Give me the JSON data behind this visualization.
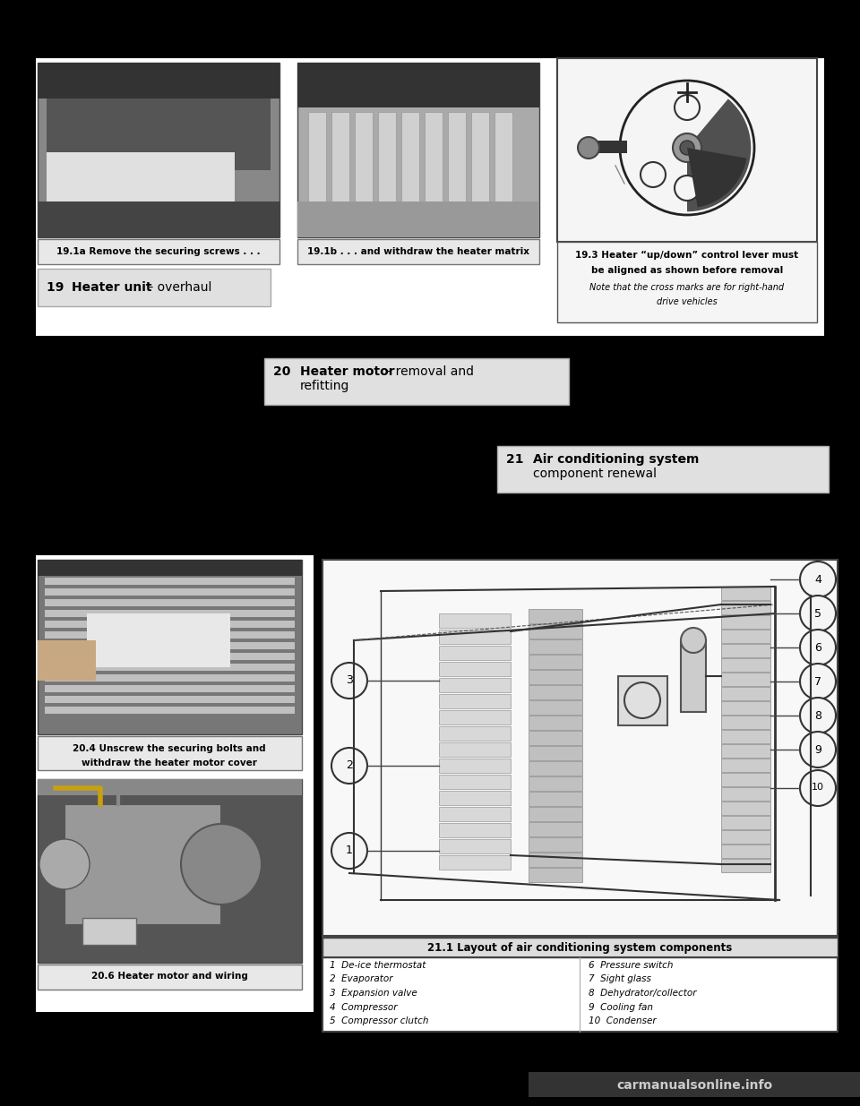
{
  "figsize": [
    9.6,
    12.35
  ],
  "dpi": 100,
  "bg": "#000000",
  "white": "#ffffff",
  "light_gray": "#e8e8e8",
  "med_gray": "#cccccc",
  "dark_gray": "#555555",
  "caption19a": "19.1a Remove the securing screws . . .",
  "caption19b": "19.1b . . . and withdraw the heater matrix",
  "caption19c_line1": "19.3 Heater “up/down” control lever must",
  "caption19c_line2": "be aligned as shown before removal",
  "caption19c_line3": "Note that the cross marks are for right-hand",
  "caption19c_line4": "drive vehicles",
  "label19_num": "19",
  "label19_bold": "Heater unit",
  "label19_norm": " - overhaul",
  "label20_num": "20",
  "label20_bold": "Heater motor",
  "label20_norm": " - removal and\n       refitting",
  "label21_num": "21",
  "label21_bold": "Air conditioning system",
  "label21_norm": " -\n    component renewal",
  "caption20a_line1": "20.4 Unscrew the securing bolts and",
  "caption20a_line2": "withdraw the heater motor cover",
  "caption20b": "20.6 Heater motor and wiring",
  "table21_title": "21.1 Layout of air conditioning system components",
  "table21_col1": [
    "1  De-ice thermostat",
    "2  Evaporator",
    "3  Expansion valve",
    "4  Compressor",
    "5  Compressor clutch"
  ],
  "table21_col2": [
    "6  Pressure switch",
    "7  Sight glass",
    "8  Dehydrator/collector",
    "9  Cooling fan",
    "10  Condenser"
  ],
  "watermark": "carmanualsonline.info"
}
